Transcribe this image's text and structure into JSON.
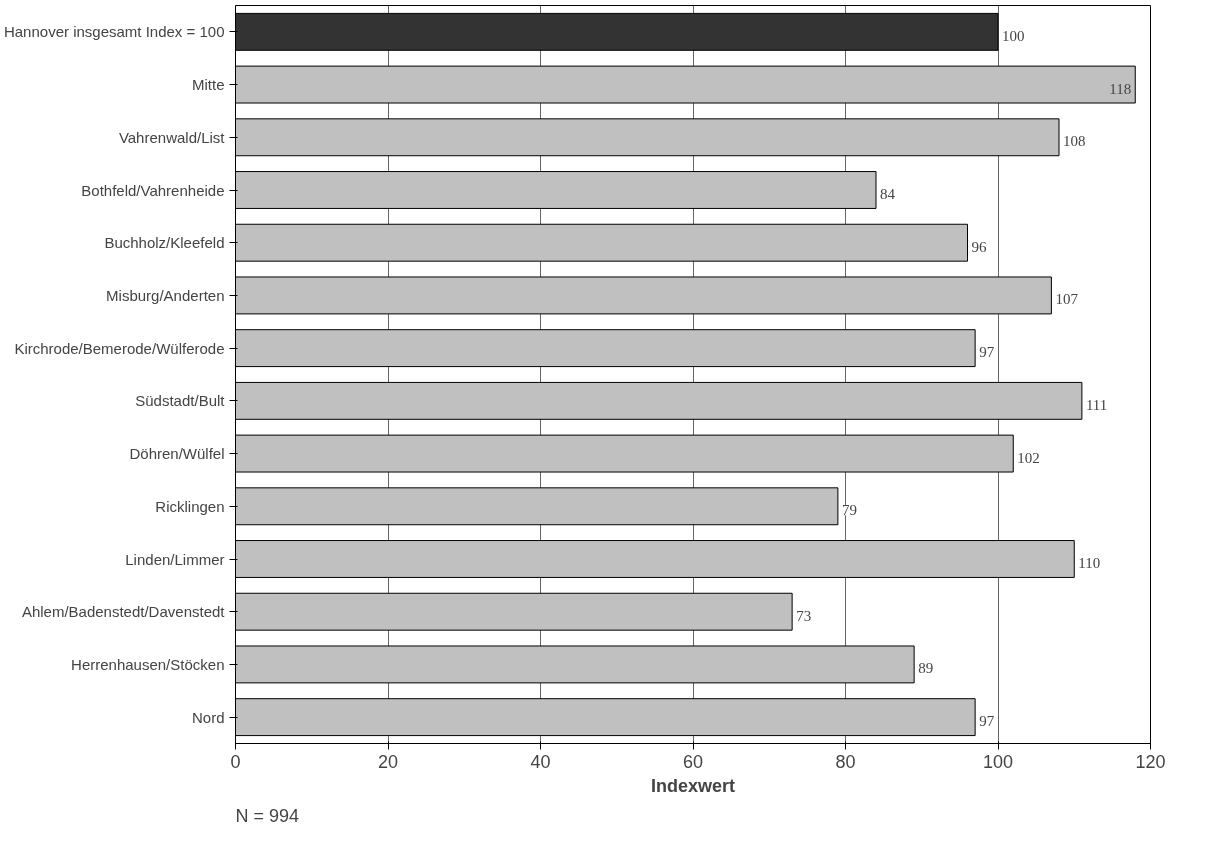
{
  "chart_data": {
    "type": "bar",
    "orientation": "horizontal",
    "xlabel": "Indexwert",
    "categories": [
      "Hannover insgesamt Index = 100",
      "Mitte",
      "Vahrenwald/List",
      "Bothfeld/Vahrenheide",
      "Buchholz/Kleefeld",
      "Misburg/Anderten",
      "Kirchrode/Bemerode/Wülferode",
      "Südstadt/Bult",
      "Döhren/Wülfel",
      "Ricklingen",
      "Linden/Limmer",
      "Ahlem/Badenstedt/Davenstedt",
      "Herrenhausen/Stöcken",
      "Nord"
    ],
    "values": [
      100,
      118,
      108,
      84,
      96,
      107,
      97,
      111,
      102,
      79,
      110,
      73,
      89,
      97
    ],
    "colors": [
      "#333333",
      "#c0c0c0",
      "#c0c0c0",
      "#c0c0c0",
      "#c0c0c0",
      "#c0c0c0",
      "#c0c0c0",
      "#c0c0c0",
      "#c0c0c0",
      "#c0c0c0",
      "#c0c0c0",
      "#c0c0c0",
      "#c0c0c0",
      "#c0c0c0"
    ],
    "xlim": [
      0,
      120
    ],
    "xticks": [
      0,
      20,
      40,
      60,
      80,
      100,
      120
    ],
    "grid": "x",
    "data_labels": true,
    "annotations": [
      "N = 994"
    ]
  }
}
